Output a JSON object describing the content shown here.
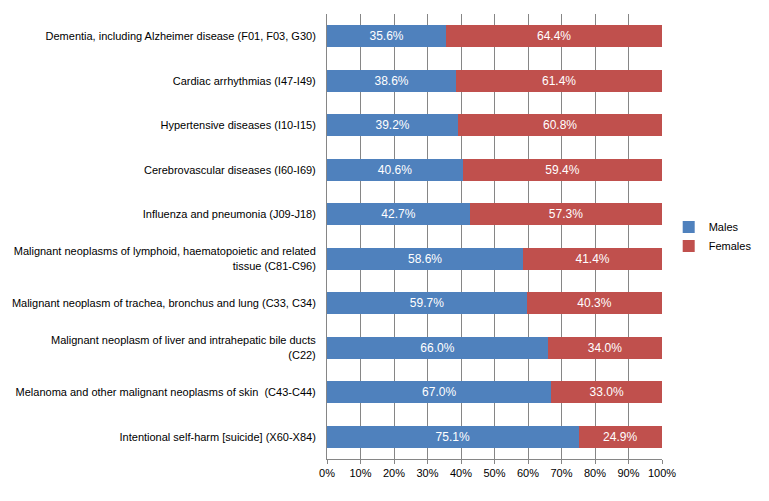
{
  "chart_data": {
    "type": "bar",
    "orientation": "horizontal",
    "stacked": true,
    "data_labels": true,
    "grid": true,
    "legend": "right",
    "categories": [
      "Dementia, including Alzheimer disease (F01, F03, G30)",
      "Cardiac arrhythmias (I47-I49)",
      "Hypertensive diseases (I10-I15)",
      "Cerebrovascular diseases (I60-I69)",
      "Influenza and pneumonia (J09-J18)",
      "Malignant neoplasms of lymphoid, haematopoietic and related tissue (C81-C96)",
      "Malignant neoplasm of trachea, bronchus and lung (C33, C34)",
      "Malignant neoplasm of liver and intrahepatic bile ducts (C22)",
      "Melanoma and other malignant neoplasms of skin  (C43-C44)",
      "Intentional self-harm [suicide] (X60-X84)"
    ],
    "series": [
      {
        "name": "Males",
        "color": "#4f81bd",
        "values": [
          35.6,
          38.6,
          39.2,
          40.6,
          42.7,
          58.6,
          59.7,
          66.0,
          67.0,
          75.1
        ],
        "value_labels": [
          "35.6%",
          "38.6%",
          "39.2%",
          "40.6%",
          "42.7%",
          "58.6%",
          "59.7%",
          "66.0%",
          "67.0%",
          "75.1%"
        ]
      },
      {
        "name": "Females",
        "color": "#c0504d",
        "values": [
          64.4,
          61.4,
          60.8,
          59.4,
          57.3,
          41.4,
          40.3,
          34.0,
          33.0,
          24.9
        ],
        "value_labels": [
          "64.4%",
          "61.4%",
          "60.8%",
          "59.4%",
          "57.3%",
          "41.4%",
          "40.3%",
          "34.0%",
          "33.0%",
          "24.9%"
        ]
      }
    ],
    "xlim": [
      0,
      100
    ],
    "xticks": [
      {
        "value": 0,
        "label": "0%"
      },
      {
        "value": 10,
        "label": "10%"
      },
      {
        "value": 20,
        "label": "20%"
      },
      {
        "value": 30,
        "label": "30%"
      },
      {
        "value": 40,
        "label": "40%"
      },
      {
        "value": 50,
        "label": "50%"
      },
      {
        "value": 60,
        "label": "60%"
      },
      {
        "value": 70,
        "label": "70%"
      },
      {
        "value": 80,
        "label": "80%"
      },
      {
        "value": 90,
        "label": "90%"
      },
      {
        "value": 100,
        "label": "100%"
      }
    ]
  }
}
